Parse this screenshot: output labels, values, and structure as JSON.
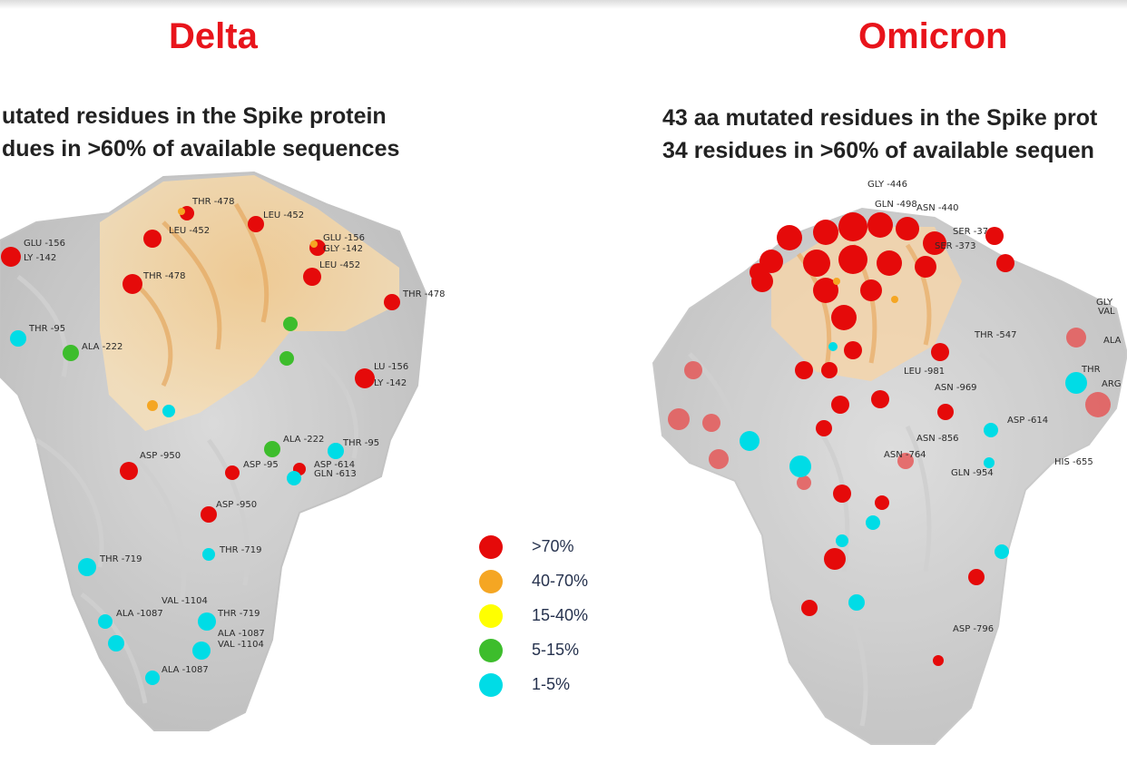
{
  "delta": {
    "title": "Delta",
    "subtitle_line1": "utated residues in the Spike protein",
    "subtitle_line2": "dues in >60% of available sequences",
    "labels": [
      "THR -478",
      "LEU -452",
      "LEU -452",
      "GLU -156",
      "GLY -142",
      "GLU -156",
      "LY -142",
      "LEU -452",
      "THR -478",
      "THR -478",
      "THR -95",
      "ALA -222",
      "LU -156",
      "LY -142",
      "ALA -222",
      "THR -95",
      "ASP -950",
      "ASP -95",
      "ASP -614",
      "GLN -613",
      "ASP -950",
      "THR -719",
      "THR -719",
      "VAL -1104",
      "ALA -1087",
      "THR -719",
      "ALA -1087",
      "VAL -1104",
      "ALA -1087"
    ]
  },
  "omicron": {
    "title": "Omicron",
    "subtitle_line1": "43 aa mutated residues in the Spike prot",
    "subtitle_line2": "34 residues in >60% of available sequen",
    "labels": [
      "GLY -446",
      "GLN -498",
      "ASN -440",
      "SER -37",
      "SER -373",
      "THR -547",
      "LEU -981",
      "ASN -969",
      "ASP -614",
      "ASN -856",
      "ASN -764",
      "GLN -954",
      "HIS -655",
      "ASP -796",
      "GLY",
      "VAL",
      "ALA",
      "THR",
      "ARG"
    ]
  },
  "colors": {
    "gt70": "#e50a0a",
    "p40_70": "#f5a623",
    "p15_40": "#ffff00",
    "p5_15": "#3dbd2c",
    "p1_5": "#00dce6",
    "title_red": "#e8141b"
  },
  "legend": [
    {
      "label": ">70%",
      "color": "#e50a0a"
    },
    {
      "label": "40-70%",
      "color": "#f5a623"
    },
    {
      "label": "15-40%",
      "color": "#ffff00"
    },
    {
      "label": "5-15%",
      "color": "#3dbd2c"
    },
    {
      "label": "1-5%",
      "color": "#00dce6"
    }
  ]
}
